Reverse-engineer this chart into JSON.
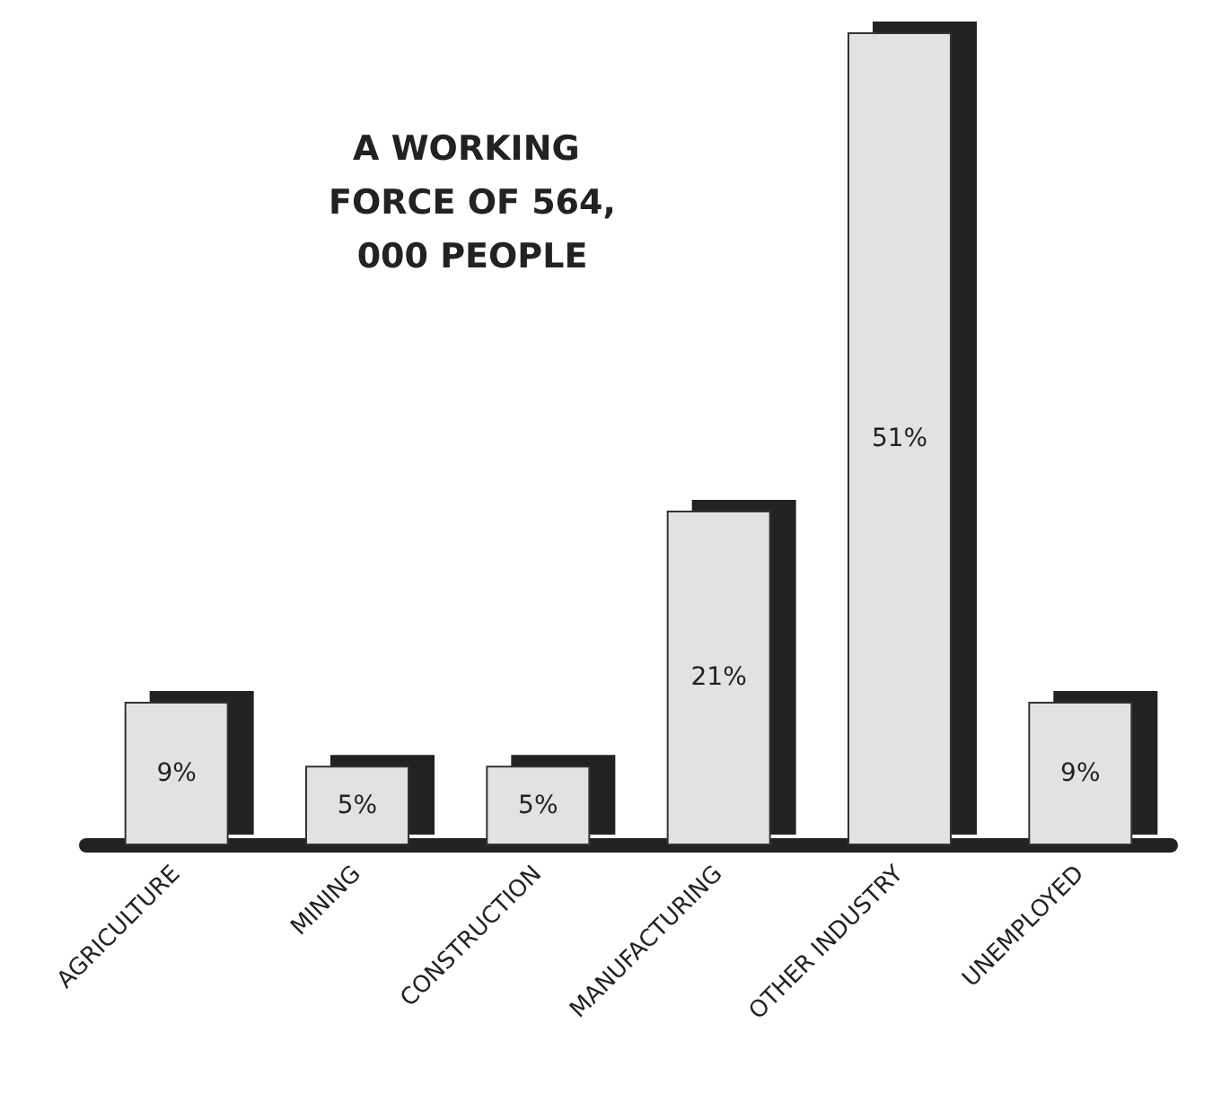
{
  "chart_data": {
    "type": "bar",
    "title": "A WORKING FORCE OF 564,000 PEOPLE",
    "categories": [
      "AGRICULTURE",
      "MINING",
      "CONSTRUCTION",
      "MANUFACTURING",
      "OTHER INDUSTRY",
      "UNEMPLOYED"
    ],
    "values": [
      9,
      5,
      5,
      21,
      51,
      9
    ],
    "color": "#e2e2e2",
    "value_labels": [
      "9%",
      "5%",
      "5%",
      "21%",
      "51%",
      "9%"
    ],
    "grid": false
  }
}
